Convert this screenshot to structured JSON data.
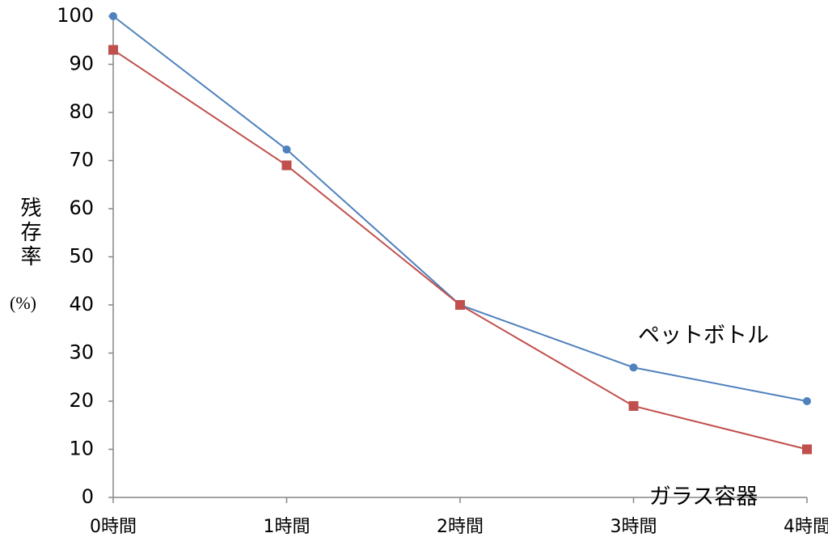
{
  "chart_data": {
    "type": "line",
    "ylabel": "残存率",
    "ylabel_unit": "(%)",
    "categories": [
      "0時間",
      "1時間",
      "2時間",
      "3時間",
      "4時間"
    ],
    "series": [
      {
        "name": "ペットボトル",
        "color": "#4f81bd",
        "marker": "circle",
        "values": [
          100,
          72.3,
          40,
          27,
          20
        ]
      },
      {
        "name": "ガラス容器",
        "color": "#c0504d",
        "marker": "square",
        "values": [
          93,
          69,
          40,
          19,
          10
        ]
      }
    ],
    "ylim": [
      0,
      100
    ],
    "yticks": [
      0,
      10,
      20,
      30,
      40,
      50,
      60,
      70,
      80,
      90,
      100
    ],
    "grid": false
  }
}
